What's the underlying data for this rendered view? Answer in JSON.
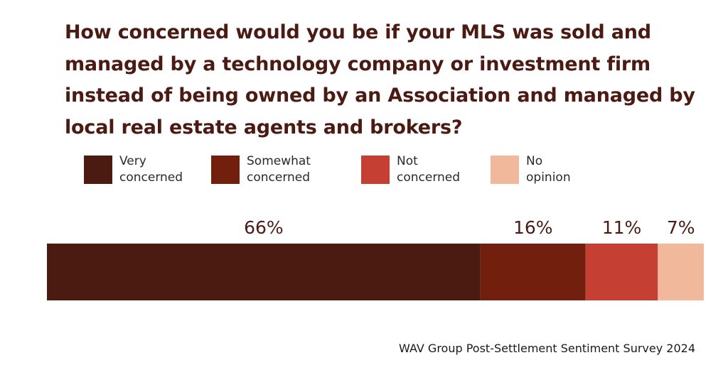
{
  "chart_data": {
    "type": "bar",
    "orientation": "horizontal",
    "stacked": true,
    "title": "How concerned would you be if your MLS was sold and managed by a technology company or investment firm instead of being owned by an Association and managed by local real estate agents and brokers?",
    "series": [
      {
        "name": "Very concerned",
        "value": 66,
        "label": "66%",
        "color": "#4b1a10"
      },
      {
        "name": "Somewhat concerned",
        "value": 16,
        "label": "16%",
        "color": "#721f0e"
      },
      {
        "name": "Not concerned",
        "value": 11,
        "label": "11%",
        "color": "#c53f33"
      },
      {
        "name": "No opinion",
        "value": 7,
        "label": "7%",
        "color": "#f2b89b"
      }
    ],
    "legend_position": "top",
    "grid": false,
    "source": "WAV Group Post-Settlement Sentiment Survey 2024"
  }
}
